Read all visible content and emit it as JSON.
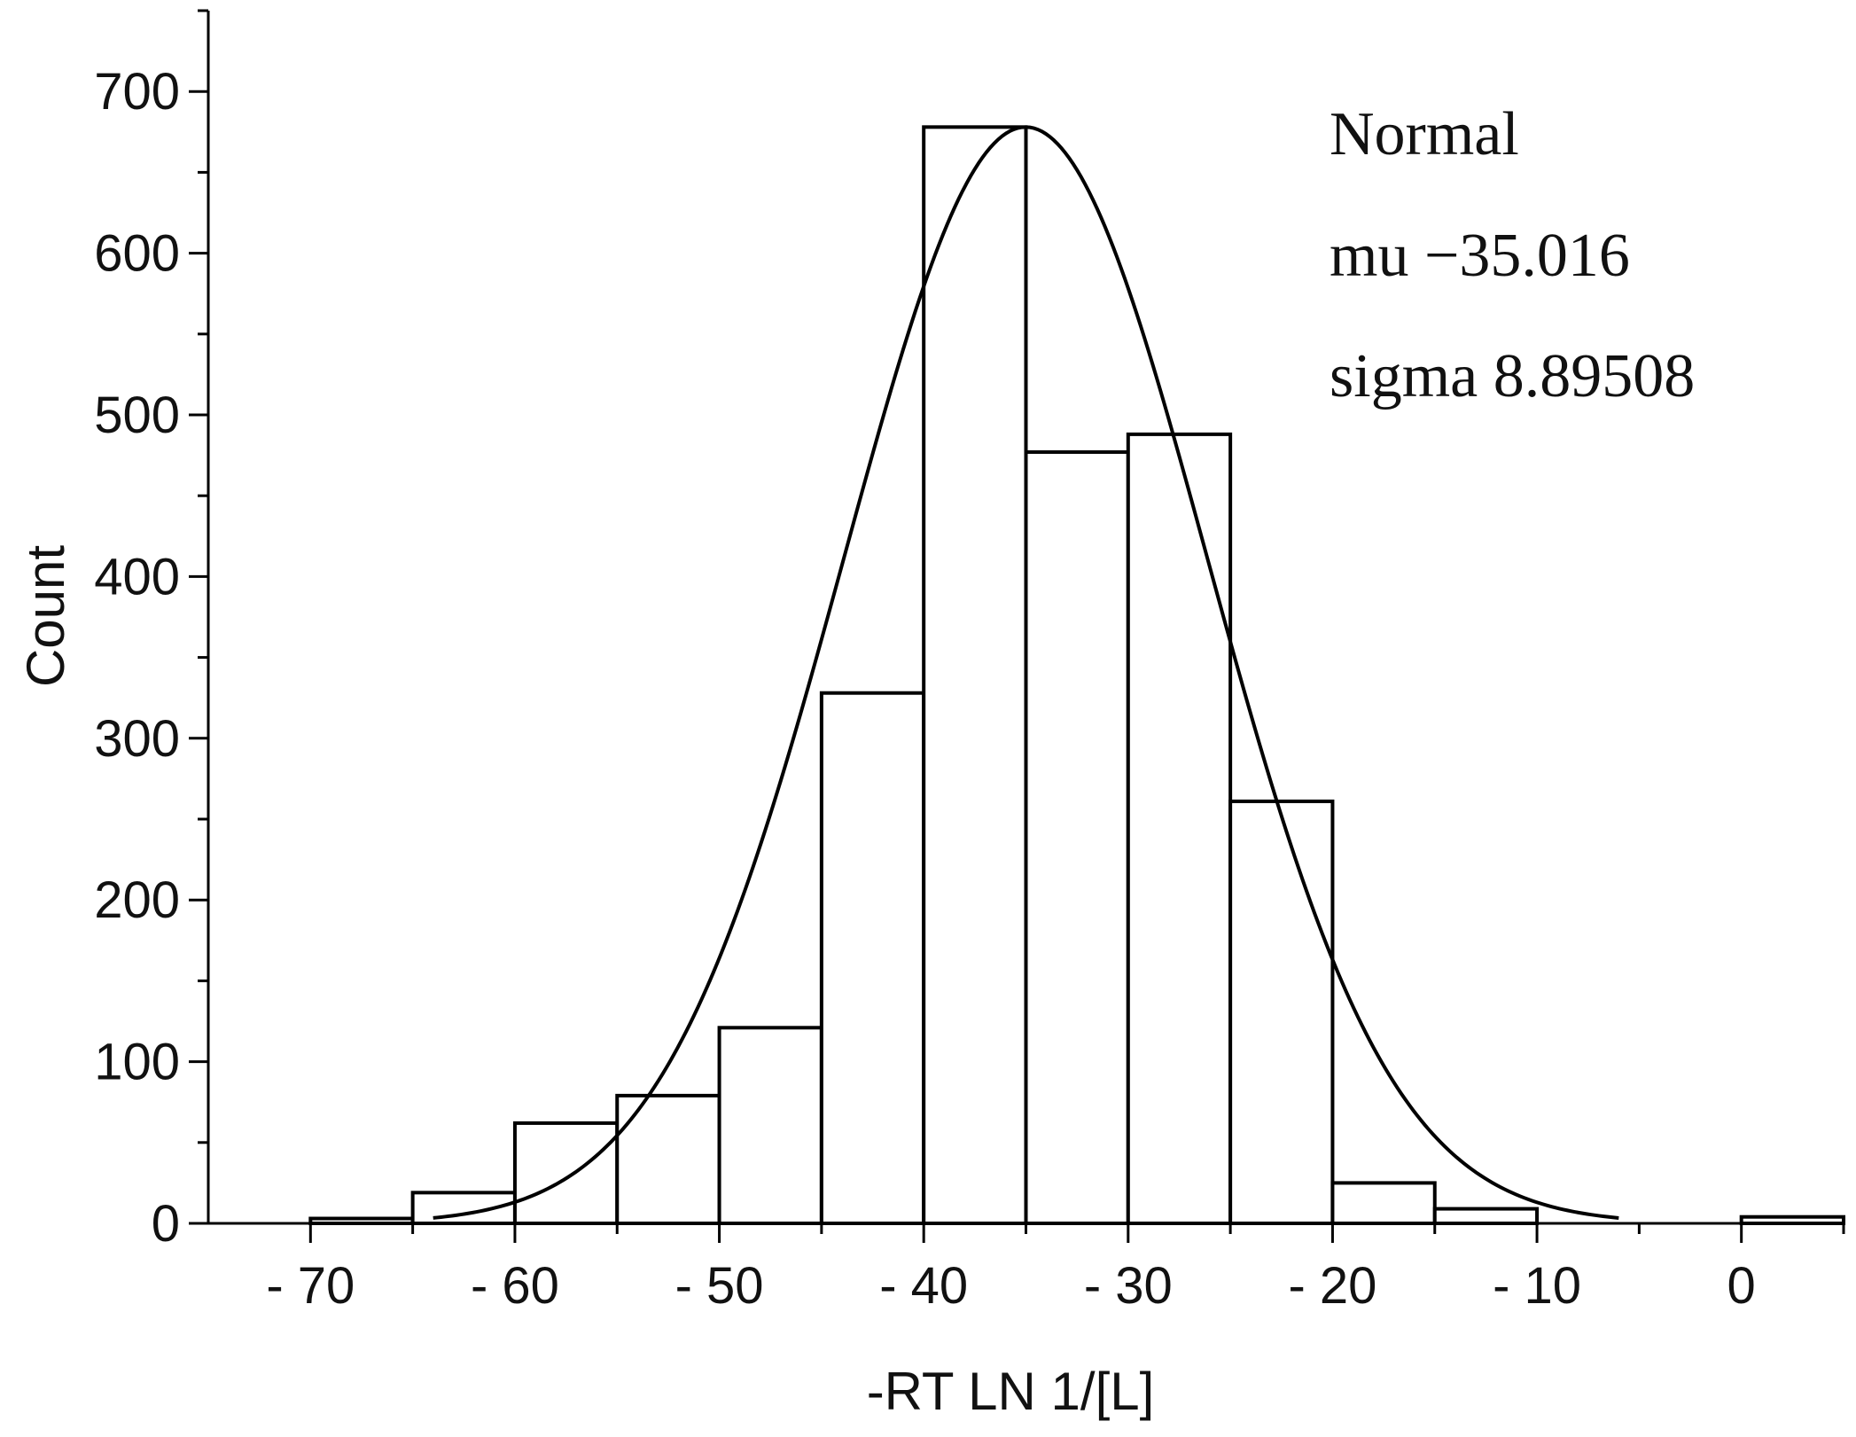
{
  "chart_data": {
    "type": "bar",
    "title": "",
    "xlabel": "-RT LN 1/[L]",
    "ylabel": "Count",
    "xlim": [
      -75,
      5
    ],
    "ylim": [
      0,
      750
    ],
    "x_ticks": [
      -70,
      -60,
      -50,
      -40,
      -30,
      -20,
      -10,
      0
    ],
    "x_tick_labels": [
      "- 70",
      "- 60",
      "- 50",
      "- 40",
      "- 30",
      "- 20",
      "- 10",
      "0"
    ],
    "y_ticks": [
      0,
      100,
      200,
      300,
      400,
      500,
      600,
      700
    ],
    "y_tick_labels": [
      "0",
      "100",
      "200",
      "300",
      "400",
      "500",
      "600",
      "700"
    ],
    "bins": [
      {
        "start": -70,
        "end": -65,
        "count": 3
      },
      {
        "start": -65,
        "end": -60,
        "count": 19
      },
      {
        "start": -60,
        "end": -55,
        "count": 62
      },
      {
        "start": -55,
        "end": -50,
        "count": 79
      },
      {
        "start": -50,
        "end": -45,
        "count": 121
      },
      {
        "start": -45,
        "end": -40,
        "count": 328
      },
      {
        "start": -40,
        "end": -35,
        "count": 678
      },
      {
        "start": -35,
        "end": -30,
        "count": 477
      },
      {
        "start": -30,
        "end": -25,
        "count": 488
      },
      {
        "start": -25,
        "end": -20,
        "count": 261
      },
      {
        "start": -20,
        "end": -15,
        "count": 25
      },
      {
        "start": -15,
        "end": -10,
        "count": 9
      },
      {
        "start": 0,
        "end": 5,
        "count": 4
      }
    ],
    "fit": {
      "distribution": "Normal",
      "mu": -35.016,
      "sigma": 8.89508,
      "peak_count": 678,
      "x_range": [
        -64,
        -6
      ]
    },
    "annotations": [
      "Normal",
      "mu −35.016",
      "sigma 8.89508"
    ]
  }
}
